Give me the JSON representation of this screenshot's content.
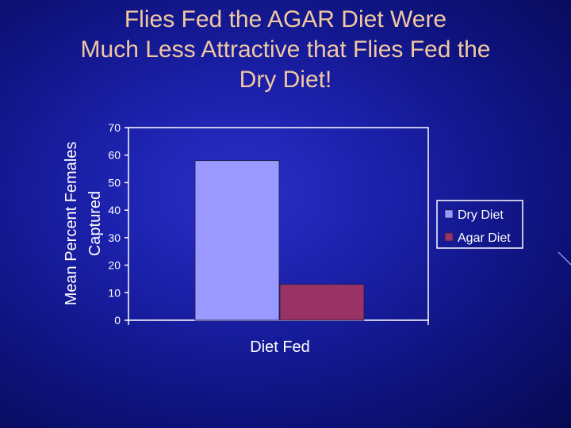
{
  "slide": {
    "title": "Flies Fed the AGAR Diet Were\nMuch Less Attractive that Flies Fed the\nDry Diet!"
  },
  "chart_data": {
    "type": "bar",
    "title": "",
    "xlabel": "Diet Fed",
    "ylabel": "Mean Percent Females\nCaptured",
    "ylim": [
      0,
      70
    ],
    "yticks": [
      0,
      10,
      20,
      30,
      40,
      50,
      60,
      70
    ],
    "grid": false,
    "legend_position": "right",
    "categories": [
      ""
    ],
    "series": [
      {
        "name": "Dry Diet",
        "values": [
          58
        ],
        "color": "#9999ff"
      },
      {
        "name": "Agar Diet",
        "values": [
          13
        ],
        "color": "#993366"
      }
    ]
  },
  "colors": {
    "title_text": "#f2c8a0",
    "axis_text": "#ffffff",
    "background": "#1a1fa6"
  }
}
